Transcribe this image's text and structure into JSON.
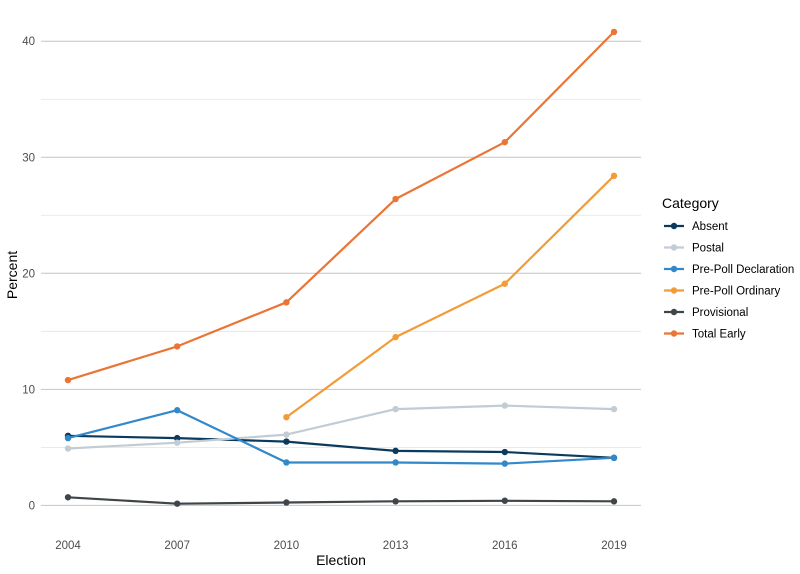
{
  "chart_data": {
    "type": "line",
    "xlabel": "Election",
    "ylabel": "Percent",
    "legend_title": "Category",
    "legend_position": "right",
    "grid": true,
    "ylim": [
      -1,
      42
    ],
    "y_ticks": [
      0,
      10,
      20,
      30,
      40
    ],
    "x": [
      2004,
      2007,
      2010,
      2013,
      2016,
      2019
    ],
    "series": [
      {
        "name": "Absent",
        "color": "#0b3a5c",
        "values": [
          6.0,
          5.8,
          5.5,
          4.7,
          4.6,
          4.1
        ]
      },
      {
        "name": "Postal",
        "color": "#c2ccd4",
        "values": [
          4.9,
          5.4,
          6.1,
          8.3,
          8.6,
          8.3
        ]
      },
      {
        "name": "Pre-Poll Declaration",
        "color": "#3288c9",
        "values": [
          5.8,
          8.2,
          3.7,
          3.7,
          3.6,
          4.1
        ]
      },
      {
        "name": "Pre-Poll Ordinary",
        "color": "#f29c38",
        "values": [
          null,
          null,
          7.6,
          14.5,
          19.1,
          28.4
        ]
      },
      {
        "name": "Provisional",
        "color": "#3f4548",
        "values": [
          0.7,
          0.15,
          0.25,
          0.35,
          0.4,
          0.35
        ]
      },
      {
        "name": "Total Early",
        "color": "#ea7535",
        "values": [
          10.8,
          13.7,
          17.5,
          26.4,
          31.3,
          40.8
        ]
      }
    ]
  }
}
